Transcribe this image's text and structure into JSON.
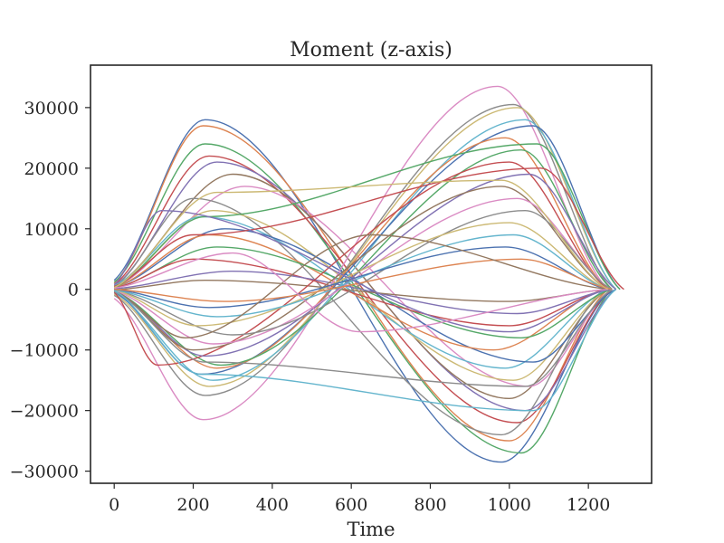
{
  "chart_data": {
    "type": "line",
    "title": "Moment (z-axis)",
    "xlabel": "Time",
    "ylabel": "",
    "xlim": [
      -60,
      1360
    ],
    "ylim": [
      -32000,
      37000
    ],
    "x_ticks": [
      0,
      200,
      400,
      600,
      800,
      1000,
      1200
    ],
    "x_tick_labels": [
      "0",
      "200",
      "400",
      "600",
      "800",
      "1000",
      "1200"
    ],
    "y_ticks": [
      -30000,
      -20000,
      -10000,
      0,
      10000,
      20000,
      30000
    ],
    "y_tick_labels": [
      "−30000",
      "−20000",
      "−10000",
      "0",
      "10000",
      "20000",
      "30000"
    ],
    "grid": false,
    "legend": "none",
    "palette": [
      "#4c72b0",
      "#dd8452",
      "#55a868",
      "#c44e52",
      "#8172b3",
      "#937860",
      "#da8bc3",
      "#8c8c8c",
      "#ccb974",
      "#64b5cd"
    ],
    "series": [
      {
        "x": [
          0,
          230,
          980,
          1260
        ],
        "y": [
          1500,
          28000,
          -28500,
          0
        ]
      },
      {
        "x": [
          0,
          225,
          1000,
          1250
        ],
        "y": [
          1000,
          27000,
          -25000,
          0
        ]
      },
      {
        "x": [
          0,
          230,
          1030,
          1260
        ],
        "y": [
          1200,
          24000,
          -27000,
          0
        ]
      },
      {
        "x": [
          0,
          240,
          1020,
          1260
        ],
        "y": [
          800,
          22000,
          -22000,
          0
        ]
      },
      {
        "x": [
          0,
          260,
          1040,
          1270
        ],
        "y": [
          600,
          21000,
          -20000,
          0
        ]
      },
      {
        "x": [
          0,
          300,
          1000,
          1250
        ],
        "y": [
          500,
          19000,
          -18000,
          0
        ]
      },
      {
        "x": [
          0,
          330,
          1050,
          1260
        ],
        "y": [
          300,
          17000,
          -16000,
          0
        ]
      },
      {
        "x": [
          0,
          200,
          980,
          1240
        ],
        "y": [
          500,
          15000,
          -24000,
          0
        ]
      },
      {
        "x": [
          0,
          250,
          1010,
          1250
        ],
        "y": [
          400,
          13000,
          -15000,
          0
        ]
      },
      {
        "x": [
          0,
          220,
          990,
          1250
        ],
        "y": [
          600,
          12000,
          -13000,
          0
        ]
      },
      {
        "x": [
          0,
          280,
          1060,
          1270
        ],
        "y": [
          300,
          10000,
          -12000,
          0
        ]
      },
      {
        "x": [
          0,
          240,
          960,
          1240
        ],
        "y": [
          300,
          9000,
          -10000,
          0
        ]
      },
      {
        "x": [
          0,
          260,
          1030,
          1260
        ],
        "y": [
          200,
          7000,
          -8000,
          0
        ]
      },
      {
        "x": [
          0,
          200,
          1000,
          1250
        ],
        "y": [
          200,
          5000,
          -6000,
          0
        ]
      },
      {
        "x": [
          0,
          300,
          1020,
          1260
        ],
        "y": [
          100,
          3000,
          -4000,
          0
        ]
      },
      {
        "x": [
          0,
          230,
          1000,
          1250
        ],
        "y": [
          -100,
          1500,
          -2000,
          0
        ]
      },
      {
        "x": [
          0,
          225,
          970,
          1250
        ],
        "y": [
          -1500,
          -21500,
          33500,
          0
        ]
      },
      {
        "x": [
          0,
          230,
          1010,
          1260
        ],
        "y": [
          -1000,
          -17500,
          30500,
          0
        ]
      },
      {
        "x": [
          0,
          240,
          1020,
          1270
        ],
        "y": [
          -800,
          -16000,
          30000,
          0
        ]
      },
      {
        "x": [
          0,
          250,
          1040,
          1270
        ],
        "y": [
          -600,
          -15000,
          28000,
          0
        ]
      },
      {
        "x": [
          0,
          220,
          1060,
          1280
        ],
        "y": [
          -400,
          -14000,
          27000,
          0
        ]
      },
      {
        "x": [
          0,
          260,
          990,
          1250
        ],
        "y": [
          -300,
          -13000,
          25000,
          0
        ]
      },
      {
        "x": [
          0,
          270,
          1030,
          1260
        ],
        "y": [
          -300,
          -12500,
          23000,
          0
        ]
      },
      {
        "x": [
          0,
          110,
          1000,
          1250
        ],
        "y": [
          -500,
          -12500,
          21000,
          0
        ]
      },
      {
        "x": [
          0,
          230,
          1050,
          1270
        ],
        "y": [
          -300,
          -11000,
          19000,
          0
        ]
      },
      {
        "x": [
          0,
          200,
          980,
          1250
        ],
        "y": [
          -200,
          -10000,
          17000,
          0
        ]
      },
      {
        "x": [
          0,
          250,
          1020,
          1260
        ],
        "y": [
          -200,
          -9000,
          15000,
          0
        ]
      },
      {
        "x": [
          0,
          300,
          1040,
          1260
        ],
        "y": [
          -100,
          -7500,
          13000,
          0
        ]
      },
      {
        "x": [
          0,
          210,
          1000,
          1250
        ],
        "y": [
          -100,
          -6000,
          11000,
          0
        ]
      },
      {
        "x": [
          0,
          260,
          1010,
          1250
        ],
        "y": [
          -100,
          -4500,
          9000,
          0
        ]
      },
      {
        "x": [
          0,
          240,
          990,
          1250
        ],
        "y": [
          0,
          -3000,
          7000,
          0
        ]
      },
      {
        "x": [
          0,
          280,
          1030,
          1260
        ],
        "y": [
          0,
          -2000,
          5000,
          0
        ]
      },
      {
        "x": [
          0,
          230,
          1070,
          1280
        ],
        "y": [
          300,
          12000,
          24000,
          0
        ]
      },
      {
        "x": [
          0,
          200,
          1080,
          1290
        ],
        "y": [
          500,
          9000,
          20000,
          0
        ]
      },
      {
        "x": [
          0,
          120,
          1000,
          1250
        ],
        "y": [
          800,
          13000,
          -7000,
          0
        ]
      },
      {
        "x": [
          0,
          180,
          650,
          1250
        ],
        "y": [
          -300,
          -8000,
          9000,
          0
        ]
      },
      {
        "x": [
          0,
          300,
          620,
          1250
        ],
        "y": [
          200,
          6000,
          -7000,
          0
        ]
      },
      {
        "x": [
          0,
          230,
          1040,
          1260
        ],
        "y": [
          -400,
          -12000,
          -16000,
          0
        ]
      },
      {
        "x": [
          0,
          260,
          980,
          1250
        ],
        "y": [
          300,
          16000,
          18000,
          0
        ]
      },
      {
        "x": [
          0,
          220,
          1060,
          1270
        ],
        "y": [
          -200,
          -14000,
          -20000,
          0
        ]
      }
    ]
  }
}
